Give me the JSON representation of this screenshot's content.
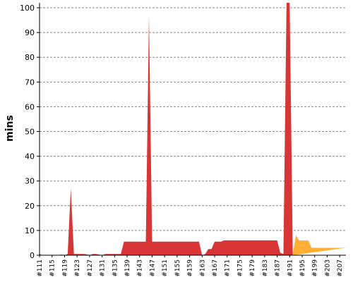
{
  "chart_data": {
    "type": "area",
    "ylabel": "mins",
    "xlabel": "",
    "ylim": [
      0,
      102
    ],
    "yticks": [
      0,
      10,
      20,
      30,
      40,
      50,
      60,
      70,
      80,
      90,
      100
    ],
    "grid": "horizontal dashed",
    "colors": {
      "failed": "#d83636",
      "unstable": "#ffaf33",
      "grid": "#888888",
      "axis": "#000000"
    },
    "xtick_labels": [
      "#111",
      "#115",
      "#119",
      "#123",
      "#127",
      "#131",
      "#135",
      "#139",
      "#143",
      "#147",
      "#151",
      "#155",
      "#159",
      "#163",
      "#167",
      "#171",
      "#175",
      "#179",
      "#183",
      "#187",
      "#191",
      "#195",
      "#199",
      "#203",
      "#207"
    ],
    "builds": [
      111,
      112,
      113,
      114,
      115,
      116,
      117,
      118,
      119,
      120,
      121,
      122,
      123,
      124,
      125,
      126,
      127,
      128,
      129,
      130,
      131,
      132,
      133,
      134,
      135,
      136,
      137,
      138,
      139,
      140,
      141,
      142,
      143,
      144,
      145,
      146,
      147,
      148,
      149,
      150,
      151,
      152,
      153,
      154,
      155,
      156,
      157,
      158,
      159,
      160,
      161,
      162,
      163,
      164,
      165,
      166,
      167,
      168,
      169,
      170,
      171,
      172,
      173,
      174,
      175,
      176,
      177,
      178,
      179,
      180,
      181,
      182,
      183,
      184,
      185,
      186,
      187,
      188,
      189,
      190,
      191,
      192,
      193,
      194,
      195,
      196,
      197,
      198,
      199,
      200,
      201,
      202,
      203,
      204,
      205,
      206,
      207,
      208,
      209
    ],
    "series": [
      {
        "status": "failed",
        "values": [
          0.5,
          0,
          0,
          0,
          0,
          0,
          0,
          0.3,
          0,
          0.5,
          27,
          0.5,
          0.5,
          0.5,
          0.5,
          0.4,
          0,
          0.5,
          0.5,
          0.3,
          0,
          0.5,
          0.5,
          0.5,
          0.5,
          0.5,
          0.5,
          5.5,
          5.5,
          5.5,
          5.5,
          5.5,
          5.5,
          5.5,
          5.5,
          97,
          5.5,
          5.5,
          5.5,
          5.5,
          5.5,
          5.5,
          5.5,
          5.5,
          5.5,
          5.5,
          5.5,
          5.5,
          5.5,
          5.5,
          5.5,
          5.5,
          0,
          0.5,
          2.5,
          2.5,
          5.5,
          5.5,
          5.5,
          6,
          6,
          6,
          6,
          6,
          6,
          6,
          6,
          6,
          6,
          6,
          6,
          6,
          6,
          6,
          6,
          6,
          6,
          1,
          0.5,
          102,
          102,
          0.5,
          null,
          null,
          null,
          null,
          null,
          null,
          null,
          null,
          null,
          null,
          null,
          null,
          null,
          null,
          null,
          null,
          null,
          null,
          null,
          null,
          null,
          null,
          null
        ]
      },
      {
        "status": "unstable",
        "values": [
          null,
          null,
          null,
          null,
          null,
          null,
          null,
          null,
          null,
          null,
          null,
          null,
          null,
          null,
          null,
          null,
          null,
          null,
          null,
          null,
          null,
          null,
          null,
          null,
          null,
          null,
          null,
          null,
          null,
          null,
          null,
          null,
          null,
          null,
          null,
          null,
          null,
          null,
          null,
          null,
          null,
          null,
          null,
          null,
          null,
          null,
          null,
          null,
          null,
          null,
          null,
          null,
          null,
          null,
          null,
          null,
          null,
          null,
          null,
          null,
          null,
          null,
          null,
          null,
          null,
          null,
          null,
          null,
          null,
          null,
          null,
          null,
          null,
          null,
          null,
          null,
          null,
          null,
          null,
          null,
          null,
          0.5,
          8,
          6,
          6,
          6,
          6,
          3,
          3,
          3,
          3,
          3,
          3,
          3,
          3,
          3,
          3,
          3,
          3,
          3,
          3,
          3,
          3,
          3,
          3
        ]
      }
    ]
  }
}
